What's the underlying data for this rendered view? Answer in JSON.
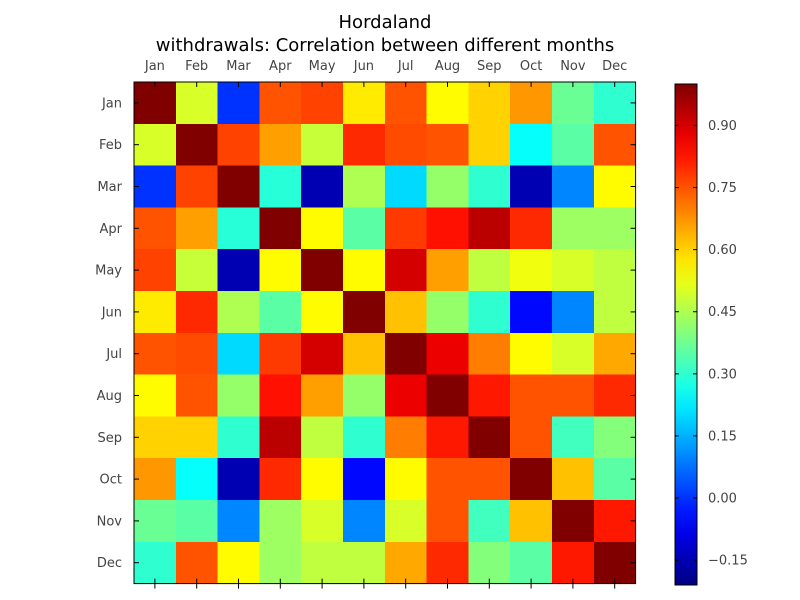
{
  "chart_data": {
    "type": "heatmap",
    "title": "Hordaland",
    "subtitle": "withdrawals: Correlation between different months",
    "row_labels": [
      "Jan",
      "Feb",
      "Mar",
      "Apr",
      "May",
      "Jun",
      "Jul",
      "Aug",
      "Sep",
      "Oct",
      "Nov",
      "Dec"
    ],
    "col_labels": [
      "Jan",
      "Feb",
      "Mar",
      "Apr",
      "May",
      "Jun",
      "Jul",
      "Aug",
      "Sep",
      "Oct",
      "Nov",
      "Dec"
    ],
    "values": [
      [
        1.0,
        0.5,
        0.0,
        0.75,
        0.77,
        0.57,
        0.75,
        0.55,
        0.6,
        0.67,
        0.37,
        0.3
      ],
      [
        0.5,
        1.0,
        0.77,
        0.66,
        0.48,
        0.8,
        0.76,
        0.75,
        0.6,
        0.25,
        0.35,
        0.75
      ],
      [
        0.0,
        0.77,
        1.0,
        0.29,
        -0.15,
        0.45,
        0.2,
        0.42,
        0.3,
        -0.15,
        0.1,
        0.55
      ],
      [
        0.75,
        0.66,
        0.29,
        1.0,
        0.55,
        0.35,
        0.78,
        0.83,
        0.93,
        0.8,
        0.43,
        0.43
      ],
      [
        0.77,
        0.48,
        -0.15,
        0.55,
        1.0,
        0.55,
        0.9,
        0.66,
        0.47,
        0.53,
        0.5,
        0.47
      ],
      [
        0.57,
        0.8,
        0.45,
        0.35,
        0.55,
        1.0,
        0.62,
        0.42,
        0.3,
        -0.05,
        0.1,
        0.47
      ],
      [
        0.75,
        0.76,
        0.2,
        0.78,
        0.9,
        0.62,
        1.0,
        0.87,
        0.7,
        0.55,
        0.5,
        0.65
      ],
      [
        0.55,
        0.75,
        0.42,
        0.83,
        0.66,
        0.42,
        0.87,
        1.0,
        0.82,
        0.75,
        0.75,
        0.8
      ],
      [
        0.6,
        0.6,
        0.3,
        0.93,
        0.47,
        0.3,
        0.7,
        0.82,
        1.0,
        0.75,
        0.32,
        0.4
      ],
      [
        0.67,
        0.25,
        -0.15,
        0.8,
        0.55,
        -0.05,
        0.55,
        0.75,
        0.75,
        1.0,
        0.62,
        0.35
      ],
      [
        0.37,
        0.35,
        0.1,
        0.43,
        0.5,
        0.1,
        0.5,
        0.75,
        0.32,
        0.62,
        1.0,
        0.82
      ],
      [
        0.3,
        0.75,
        0.55,
        0.43,
        0.47,
        0.47,
        0.65,
        0.8,
        0.4,
        0.35,
        0.82,
        1.0
      ]
    ],
    "colormap": "jet",
    "colorbar": {
      "min": -0.21,
      "max": 1.0,
      "ticks": [
        -0.15,
        0.0,
        0.15,
        0.3,
        0.45,
        0.6,
        0.75,
        0.9
      ],
      "tick_labels": [
        "−0.15",
        "0.00",
        "0.15",
        "0.30",
        "0.45",
        "0.60",
        "0.75",
        "0.90"
      ]
    },
    "grid": false
  }
}
